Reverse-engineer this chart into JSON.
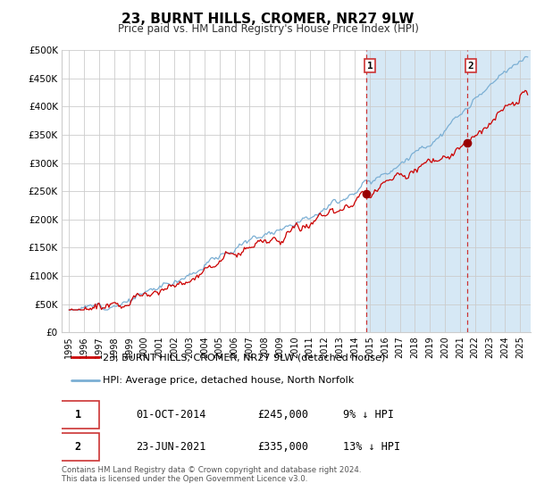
{
  "title": "23, BURNT HILLS, CROMER, NR27 9LW",
  "subtitle": "Price paid vs. HM Land Registry's House Price Index (HPI)",
  "legend_label1": "23, BURNT HILLS, CROMER, NR27 9LW (detached house)",
  "legend_label2": "HPI: Average price, detached house, North Norfolk",
  "annotation_text": "Contains HM Land Registry data © Crown copyright and database right 2024.\nThis data is licensed under the Open Government Licence v3.0.",
  "sale1_date": "01-OCT-2014",
  "sale1_price": "£245,000",
  "sale1_hpi": "9% ↓ HPI",
  "sale1_year": 2014.75,
  "sale1_value": 245000,
  "sale2_date": "23-JUN-2021",
  "sale2_price": "£335,000",
  "sale2_hpi": "13% ↓ HPI",
  "sale2_year": 2021.48,
  "sale2_value": 335000,
  "hpi_color": "#7bafd4",
  "hpi_fill_color": "#d6e8f5",
  "price_color": "#cc0000",
  "dot_color": "#990000",
  "vline_color": "#cc3333",
  "background_color": "#ffffff",
  "plot_bg_color": "#ffffff",
  "grid_color": "#cccccc",
  "ylim": [
    0,
    500000
  ],
  "xlim_start": 1994.5,
  "xlim_end": 2025.7,
  "ylabel_ticks": [
    0,
    50000,
    100000,
    150000,
    200000,
    250000,
    300000,
    350000,
    400000,
    450000,
    500000
  ],
  "ylabel_labels": [
    "£0",
    "£50K",
    "£100K",
    "£150K",
    "£200K",
    "£250K",
    "£300K",
    "£350K",
    "£400K",
    "£450K",
    "£500K"
  ],
  "xtick_years": [
    1995,
    1996,
    1997,
    1998,
    1999,
    2000,
    2001,
    2002,
    2003,
    2004,
    2005,
    2006,
    2007,
    2008,
    2009,
    2010,
    2011,
    2012,
    2013,
    2014,
    2015,
    2016,
    2017,
    2018,
    2019,
    2020,
    2021,
    2022,
    2023,
    2024,
    2025
  ]
}
